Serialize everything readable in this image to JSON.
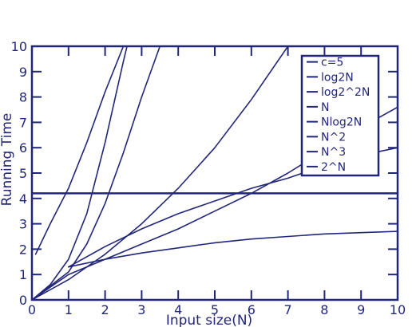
{
  "chart_data": {
    "type": "line",
    "title": "",
    "xlabel": "Input size(N)",
    "ylabel": "Running Time",
    "xlim": [
      0,
      10
    ],
    "ylim": [
      0,
      10
    ],
    "x_ticks": [
      "0",
      "1",
      "2",
      "3",
      "4",
      "5",
      "6",
      "7",
      "8",
      "9",
      "10"
    ],
    "y_ticks": [
      "0",
      "1",
      "2",
      "3",
      "4",
      "5",
      "6",
      "7",
      "8",
      "9",
      "10"
    ],
    "grid": false,
    "legend_position": "top-right",
    "line_color": "#22267a",
    "background": "#ffffff",
    "series": [
      {
        "name": "c=5",
        "x": [
          0,
          10
        ],
        "y": [
          4.2,
          4.2
        ]
      },
      {
        "name": "log2N",
        "x": [
          1,
          2,
          3,
          4,
          5,
          6,
          7,
          8,
          9,
          10
        ],
        "y": [
          1.3,
          1.6,
          1.85,
          2.05,
          2.25,
          2.4,
          2.5,
          2.6,
          2.65,
          2.7
        ]
      },
      {
        "name": "log2^2N",
        "x": [
          1,
          2,
          3,
          4,
          5,
          6,
          7,
          8,
          9,
          10
        ],
        "y": [
          1.3,
          2.1,
          2.8,
          3.4,
          3.9,
          4.4,
          4.8,
          5.3,
          5.7,
          6.0
        ]
      },
      {
        "name": "N",
        "x": [
          0,
          1,
          2,
          3,
          4,
          5,
          6,
          7,
          8,
          9,
          10
        ],
        "y": [
          0,
          1,
          1.6,
          2.2,
          2.8,
          3.5,
          4.2,
          5.0,
          5.9,
          6.8,
          7.6
        ]
      },
      {
        "name": "Nlog2N",
        "x": [
          0,
          1,
          2,
          3,
          4,
          5,
          6,
          7
        ],
        "y": [
          0,
          0.8,
          1.8,
          3.0,
          4.4,
          6.0,
          7.9,
          10.0
        ]
      },
      {
        "name": "N^2",
        "x": [
          0,
          1,
          1.5,
          2,
          2.5,
          3,
          3.5
        ],
        "y": [
          0,
          1.1,
          2.2,
          3.8,
          5.8,
          8.0,
          10.0
        ]
      },
      {
        "name": "N^3",
        "x": [
          0,
          0.5,
          1,
          1.5,
          2,
          2.5,
          2.6
        ],
        "y": [
          0,
          0.6,
          1.6,
          3.4,
          6.2,
          9.4,
          10.0
        ]
      },
      {
        "name": "2^N",
        "x": [
          0.1,
          0.5,
          1,
          1.5,
          2,
          2.5
        ],
        "y": [
          1.8,
          3.0,
          4.4,
          6.2,
          8.2,
          10.0
        ]
      }
    ]
  }
}
